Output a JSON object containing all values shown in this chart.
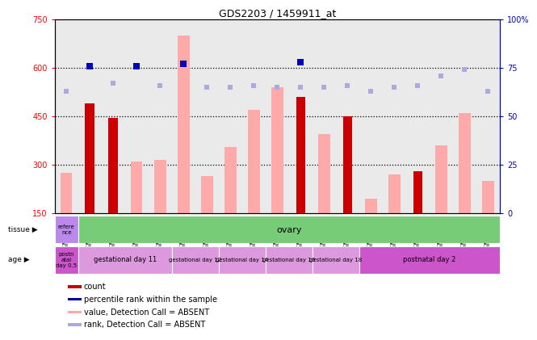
{
  "title": "GDS2203 / 1459911_at",
  "samples": [
    "GSM120857",
    "GSM120854",
    "GSM120855",
    "GSM120856",
    "GSM120851",
    "GSM120852",
    "GSM120853",
    "GSM120848",
    "GSM120849",
    "GSM120850",
    "GSM120845",
    "GSM120846",
    "GSM120847",
    "GSM120842",
    "GSM120843",
    "GSM120844",
    "GSM120839",
    "GSM120840",
    "GSM120841"
  ],
  "count_values": [
    null,
    490,
    445,
    null,
    null,
    null,
    null,
    null,
    null,
    null,
    510,
    null,
    450,
    null,
    null,
    280,
    null,
    null,
    null
  ],
  "absent_value_bars": [
    275,
    null,
    null,
    310,
    315,
    700,
    265,
    355,
    470,
    540,
    null,
    395,
    null,
    195,
    270,
    null,
    360,
    460,
    250
  ],
  "percentile_rank_present": [
    null,
    76,
    null,
    76,
    null,
    77,
    null,
    null,
    null,
    null,
    78,
    null,
    null,
    null,
    null,
    null,
    null,
    null,
    null
  ],
  "percentile_rank_absent": [
    63,
    null,
    67,
    null,
    66,
    77,
    65,
    65,
    66,
    65,
    65,
    65,
    66,
    63,
    65,
    66,
    71,
    74,
    63
  ],
  "ylim_left": [
    150,
    750
  ],
  "y_ticks_left": [
    150,
    300,
    450,
    600,
    750
  ],
  "y_ticks_right": [
    0,
    25,
    50,
    75,
    100
  ],
  "dotted_lines": [
    300,
    450,
    600
  ],
  "tissue_ref_label": "refere\nnce",
  "tissue_ref_color": "#bb88ee",
  "tissue_main_label": "ovary",
  "tissue_main_color": "#77cc77",
  "age_groups": [
    {
      "label": "postn\natal\nday 0.5",
      "color": "#cc55cc",
      "span": 1
    },
    {
      "label": "gestational day 11",
      "color": "#dd99dd",
      "span": 4
    },
    {
      "label": "gestational day 12",
      "color": "#dd99dd",
      "span": 2
    },
    {
      "label": "gestational day 14",
      "color": "#dd99dd",
      "span": 2
    },
    {
      "label": "gestational day 16",
      "color": "#dd99dd",
      "span": 2
    },
    {
      "label": "gestational day 18",
      "color": "#dd99dd",
      "span": 2
    },
    {
      "label": "postnatal day 2",
      "color": "#cc55cc",
      "span": 6
    }
  ],
  "legend_items": [
    {
      "color": "#cc0000",
      "label": "count"
    },
    {
      "color": "#000099",
      "label": "percentile rank within the sample"
    },
    {
      "color": "#ffaaaa",
      "label": "value, Detection Call = ABSENT"
    },
    {
      "color": "#aaaadd",
      "label": "rank, Detection Call = ABSENT"
    }
  ],
  "count_color": "#cc0000",
  "absent_bar_color": "#ffaaaa",
  "rank_present_color": "#0000bb",
  "rank_absent_color": "#aaaadd",
  "right_axis_color": "#0000cc",
  "bg_color": "#ffffff",
  "col_bg_color": "#cccccc"
}
